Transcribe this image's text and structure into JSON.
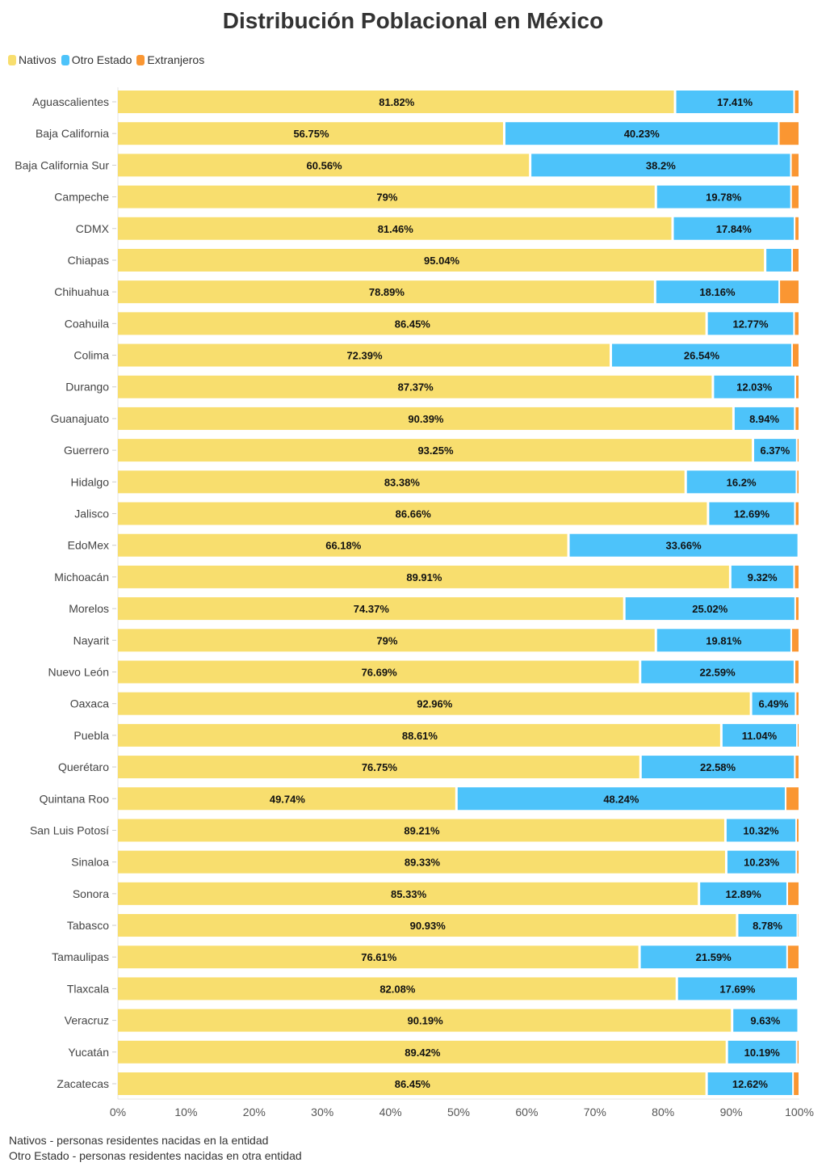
{
  "chart_data": {
    "type": "bar",
    "orientation": "horizontal",
    "stacked": true,
    "title": "Distribución Poblacional en México",
    "categories": [
      "Aguascalientes",
      "Baja California",
      "Baja California Sur",
      "Campeche",
      "CDMX",
      "Chiapas",
      "Chihuahua",
      "Coahuila",
      "Colima",
      "Durango",
      "Guanajuato",
      "Guerrero",
      "Hidalgo",
      "Jalisco",
      "EdoMex",
      "Michoacán",
      "Morelos",
      "Nayarit",
      "Nuevo León",
      "Oaxaca",
      "Puebla",
      "Querétaro",
      "Quintana Roo",
      "San Luis Potosí",
      "Sinaloa",
      "Sonora",
      "Tabasco",
      "Tamaulipas",
      "Tlaxcala",
      "Veracruz",
      "Yucatán",
      "Zacatecas"
    ],
    "series": [
      {
        "name": "Nativos",
        "color": "#F8DE6E",
        "values": [
          81.82,
          56.75,
          60.56,
          79,
          81.46,
          95.04,
          78.89,
          86.45,
          72.39,
          87.37,
          90.39,
          93.25,
          83.38,
          86.66,
          66.18,
          89.91,
          74.37,
          79,
          76.69,
          92.96,
          88.61,
          76.75,
          49.74,
          89.21,
          89.33,
          85.33,
          90.93,
          76.61,
          82.08,
          90.19,
          89.42,
          86.45
        ]
      },
      {
        "name": "Otro Estado",
        "color": "#4DC3FA",
        "values": [
          17.41,
          40.23,
          38.2,
          19.78,
          17.84,
          3.9,
          18.16,
          12.77,
          26.54,
          12.03,
          8.94,
          6.37,
          16.2,
          12.69,
          33.66,
          9.32,
          25.02,
          19.81,
          22.59,
          6.49,
          11.04,
          22.58,
          48.24,
          10.32,
          10.23,
          12.89,
          8.78,
          21.59,
          17.69,
          9.63,
          10.19,
          12.62
        ]
      },
      {
        "name": "Extranjeros",
        "color": "#FA9632",
        "values": [
          0.77,
          3.02,
          1.24,
          1.22,
          0.7,
          1.06,
          2.95,
          0.78,
          1.07,
          0.6,
          0.67,
          0.38,
          0.42,
          0.65,
          0.16,
          0.77,
          0.61,
          1.19,
          0.72,
          0.55,
          0.35,
          0.67,
          2.02,
          0.47,
          0.44,
          1.78,
          0.29,
          1.8,
          0.23,
          0.18,
          0.39,
          0.93
        ]
      }
    ],
    "xlim": [
      0,
      100
    ],
    "x_ticks": [
      "0%",
      "10%",
      "20%",
      "30%",
      "40%",
      "50%",
      "60%",
      "70%",
      "80%",
      "90%",
      "100%"
    ],
    "xlabel": "",
    "ylabel": "",
    "grid": false,
    "legend_position": "top-left",
    "data_label_min": 5
  },
  "notes": [
    "Nativos - personas residentes nacidas en la entidad",
    "Otro Estado - personas residentes nacidas en otra entidad"
  ]
}
